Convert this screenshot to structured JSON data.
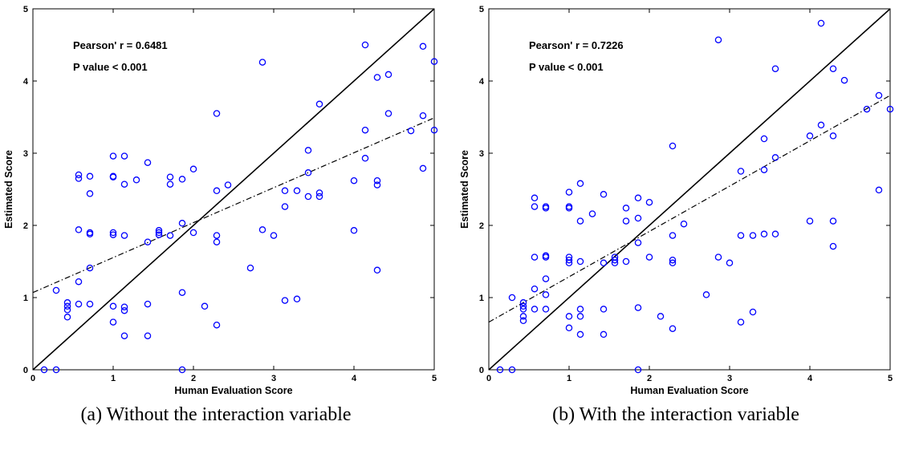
{
  "chart_data": [
    {
      "type": "scatter",
      "title": "",
      "xlabel": "Human Evaluation Score",
      "ylabel": "Estimated Score",
      "xlim": [
        0,
        5
      ],
      "ylim": [
        0,
        5
      ],
      "xticks": [
        "0",
        "1",
        "2",
        "3",
        "4",
        "5"
      ],
      "yticks": [
        "0",
        "1",
        "2",
        "3",
        "4",
        "5"
      ],
      "grid": false,
      "annotations": [
        "Pearson' r = 0.6481",
        "P value < 0.001"
      ],
      "caption": "(a) Without the interaction variable",
      "marker_color": "#0000ff",
      "reference_line": {
        "style": "solid",
        "from": [
          0,
          0
        ],
        "to": [
          5,
          5
        ]
      },
      "fit_line": {
        "style": "dash-dot",
        "from": [
          0,
          1.07
        ],
        "to": [
          5,
          3.49
        ]
      },
      "points": [
        [
          0.14,
          0
        ],
        [
          0.29,
          0
        ],
        [
          0.29,
          1.1
        ],
        [
          0.43,
          0.93
        ],
        [
          0.43,
          0.88
        ],
        [
          0.43,
          0.83
        ],
        [
          0.43,
          0.73
        ],
        [
          0.57,
          0.91
        ],
        [
          0.57,
          1.22
        ],
        [
          0.57,
          1.94
        ],
        [
          0.57,
          2.65
        ],
        [
          0.57,
          2.7
        ],
        [
          0.71,
          0.91
        ],
        [
          0.71,
          1.41
        ],
        [
          0.71,
          1.88
        ],
        [
          0.71,
          1.9
        ],
        [
          0.71,
          2.44
        ],
        [
          0.71,
          2.68
        ],
        [
          1.0,
          0.66
        ],
        [
          1.0,
          0.88
        ],
        [
          1.0,
          1.87
        ],
        [
          1.0,
          1.9
        ],
        [
          1.0,
          2.67
        ],
        [
          1.0,
          2.68
        ],
        [
          1.0,
          2.96
        ],
        [
          1.14,
          0.47
        ],
        [
          1.14,
          0.82
        ],
        [
          1.14,
          0.87
        ],
        [
          1.14,
          1.86
        ],
        [
          1.14,
          2.57
        ],
        [
          1.14,
          2.96
        ],
        [
          1.29,
          2.63
        ],
        [
          1.43,
          0.47
        ],
        [
          1.43,
          0.91
        ],
        [
          1.43,
          1.77
        ],
        [
          1.43,
          2.87
        ],
        [
          1.57,
          1.87
        ],
        [
          1.57,
          1.9
        ],
        [
          1.57,
          1.93
        ],
        [
          1.71,
          1.86
        ],
        [
          1.71,
          2.57
        ],
        [
          1.71,
          2.67
        ],
        [
          1.86,
          0
        ],
        [
          1.86,
          1.07
        ],
        [
          1.86,
          2.03
        ],
        [
          1.86,
          2.64
        ],
        [
          2.0,
          1.9
        ],
        [
          2.0,
          2.78
        ],
        [
          2.14,
          0.88
        ],
        [
          2.29,
          0.62
        ],
        [
          2.29,
          1.77
        ],
        [
          2.29,
          1.86
        ],
        [
          2.29,
          2.48
        ],
        [
          2.29,
          3.55
        ],
        [
          2.43,
          2.56
        ],
        [
          2.71,
          1.41
        ],
        [
          2.86,
          1.94
        ],
        [
          2.86,
          4.26
        ],
        [
          3.0,
          1.86
        ],
        [
          3.14,
          0.96
        ],
        [
          3.14,
          2.26
        ],
        [
          3.14,
          2.48
        ],
        [
          3.29,
          0.98
        ],
        [
          3.29,
          2.48
        ],
        [
          3.43,
          2.4
        ],
        [
          3.43,
          2.73
        ],
        [
          3.43,
          3.04
        ],
        [
          3.57,
          2.4
        ],
        [
          3.57,
          2.45
        ],
        [
          3.57,
          3.68
        ],
        [
          4.0,
          1.93
        ],
        [
          4.0,
          2.62
        ],
        [
          4.14,
          2.93
        ],
        [
          4.14,
          3.32
        ],
        [
          4.14,
          4.5
        ],
        [
          4.29,
          1.38
        ],
        [
          4.29,
          2.56
        ],
        [
          4.29,
          2.62
        ],
        [
          4.29,
          4.05
        ],
        [
          4.43,
          3.55
        ],
        [
          4.43,
          4.09
        ],
        [
          4.71,
          3.31
        ],
        [
          4.86,
          2.79
        ],
        [
          4.86,
          3.52
        ],
        [
          4.86,
          4.48
        ],
        [
          5.0,
          3.32
        ],
        [
          5.0,
          4.27
        ]
      ]
    },
    {
      "type": "scatter",
      "title": "",
      "xlabel": "Human Evaluation Score",
      "ylabel": "Estimated Score",
      "xlim": [
        0,
        5
      ],
      "ylim": [
        0,
        5
      ],
      "xticks": [
        "0",
        "1",
        "2",
        "3",
        "4",
        "5"
      ],
      "yticks": [
        "0",
        "1",
        "2",
        "3",
        "4",
        "5"
      ],
      "grid": false,
      "annotations": [
        "Pearson' r = 0.7226",
        "P value < 0.001"
      ],
      "caption": "(b) With the interaction variable",
      "marker_color": "#0000ff",
      "reference_line": {
        "style": "solid",
        "from": [
          0,
          0
        ],
        "to": [
          5,
          5
        ]
      },
      "fit_line": {
        "style": "dash-dot",
        "from": [
          0,
          0.66
        ],
        "to": [
          5,
          3.8
        ]
      },
      "points": [
        [
          0.14,
          0
        ],
        [
          0.29,
          0
        ],
        [
          0.29,
          1.0
        ],
        [
          0.43,
          0.93
        ],
        [
          0.43,
          0.88
        ],
        [
          0.43,
          0.84
        ],
        [
          0.43,
          0.74
        ],
        [
          0.43,
          0.68
        ],
        [
          0.57,
          0.84
        ],
        [
          0.57,
          1.12
        ],
        [
          0.57,
          1.56
        ],
        [
          0.57,
          2.26
        ],
        [
          0.57,
          2.38
        ],
        [
          0.71,
          0.84
        ],
        [
          0.71,
          1.04
        ],
        [
          0.71,
          1.26
        ],
        [
          0.71,
          1.56
        ],
        [
          0.71,
          1.58
        ],
        [
          0.71,
          2.24
        ],
        [
          0.71,
          2.26
        ],
        [
          1.0,
          0.58
        ],
        [
          1.0,
          0.74
        ],
        [
          1.0,
          1.48
        ],
        [
          1.0,
          1.52
        ],
        [
          1.0,
          1.56
        ],
        [
          1.0,
          2.24
        ],
        [
          1.0,
          2.26
        ],
        [
          1.0,
          2.46
        ],
        [
          1.14,
          0.49
        ],
        [
          1.14,
          0.74
        ],
        [
          1.14,
          0.84
        ],
        [
          1.14,
          1.5
        ],
        [
          1.14,
          2.06
        ],
        [
          1.14,
          2.58
        ],
        [
          1.29,
          2.16
        ],
        [
          1.43,
          0.49
        ],
        [
          1.43,
          0.84
        ],
        [
          1.43,
          1.48
        ],
        [
          1.43,
          2.43
        ],
        [
          1.57,
          1.48
        ],
        [
          1.57,
          1.52
        ],
        [
          1.57,
          1.56
        ],
        [
          1.71,
          1.5
        ],
        [
          1.71,
          2.06
        ],
        [
          1.71,
          2.24
        ],
        [
          1.86,
          0
        ],
        [
          1.86,
          0.86
        ],
        [
          1.86,
          1.76
        ],
        [
          1.86,
          2.1
        ],
        [
          1.86,
          2.38
        ],
        [
          2.0,
          1.56
        ],
        [
          2.0,
          2.32
        ],
        [
          2.14,
          0.74
        ],
        [
          2.29,
          0.57
        ],
        [
          2.29,
          1.48
        ],
        [
          2.29,
          1.52
        ],
        [
          2.29,
          1.86
        ],
        [
          2.29,
          3.1
        ],
        [
          2.43,
          2.02
        ],
        [
          2.71,
          1.04
        ],
        [
          2.86,
          1.56
        ],
        [
          2.86,
          4.57
        ],
        [
          3.0,
          1.48
        ],
        [
          3.14,
          0.66
        ],
        [
          3.14,
          1.86
        ],
        [
          3.14,
          2.75
        ],
        [
          3.29,
          0.8
        ],
        [
          3.29,
          1.86
        ],
        [
          3.43,
          1.88
        ],
        [
          3.43,
          2.77
        ],
        [
          3.43,
          3.2
        ],
        [
          3.57,
          1.88
        ],
        [
          3.57,
          2.94
        ],
        [
          3.57,
          4.17
        ],
        [
          4.0,
          2.06
        ],
        [
          4.0,
          3.24
        ],
        [
          4.14,
          3.39
        ],
        [
          4.14,
          4.8
        ],
        [
          4.29,
          1.71
        ],
        [
          4.29,
          2.06
        ],
        [
          4.29,
          3.24
        ],
        [
          4.29,
          4.17
        ],
        [
          4.43,
          4.01
        ],
        [
          4.71,
          3.61
        ],
        [
          4.86,
          2.49
        ],
        [
          4.86,
          3.8
        ],
        [
          5.0,
          3.61
        ]
      ]
    }
  ]
}
